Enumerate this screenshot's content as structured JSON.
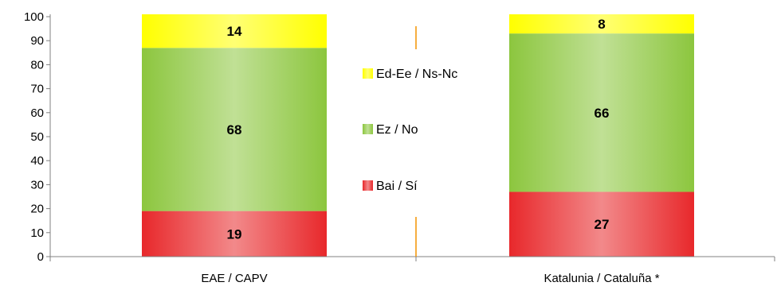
{
  "chart_data": {
    "type": "bar",
    "stacked": true,
    "categories": [
      "EAE / CAPV",
      "Katalunia / Cataluña *"
    ],
    "series": [
      {
        "name": "Bai / Sí",
        "values": [
          19,
          27
        ],
        "color": "#e8282b"
      },
      {
        "name": "Ez / No",
        "values": [
          68,
          66
        ],
        "color": "#8cc63e"
      },
      {
        "name": "Ed-Ee / Ns-Nc",
        "values": [
          14,
          8
        ],
        "color": "#ffff00"
      }
    ],
    "legend_order": [
      "Ed-Ee / Ns-Nc",
      "Ez / No",
      "Bai / Sí"
    ],
    "legend_position": "center",
    "ylim": [
      0,
      100
    ],
    "yticks": [
      0,
      10,
      20,
      30,
      40,
      50,
      60,
      70,
      80,
      90,
      100
    ],
    "grid": false,
    "divider_color": "#f39200"
  }
}
